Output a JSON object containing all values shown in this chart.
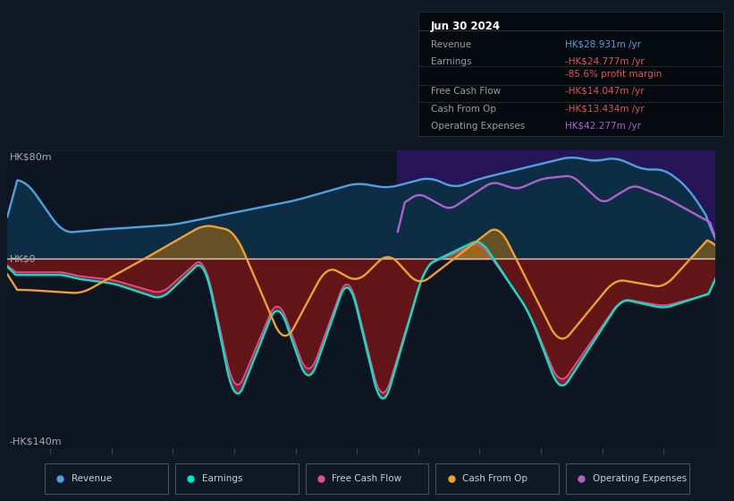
{
  "bg_color": "#0f1923",
  "chart_bg": "#0d1520",
  "ylabel_top": "HK$80m",
  "ylabel_zero": "HK$0",
  "ylabel_bot": "-HK$140m",
  "ylim": [
    -140,
    80
  ],
  "xlim_start": 2013.3,
  "xlim_end": 2024.85,
  "xticks": [
    2014,
    2015,
    2016,
    2017,
    2018,
    2019,
    2020,
    2021,
    2022,
    2023,
    2024
  ],
  "info_box_title": "Jun 30 2024",
  "info_rows": [
    {
      "label": "Revenue",
      "value": "HK$28.931m /yr",
      "vcolor": "#4ca3e0"
    },
    {
      "label": "Earnings",
      "value": "-HK$24.777m /yr",
      "vcolor": "#e05555"
    },
    {
      "label": "",
      "value": "-85.6% profit margin",
      "vcolor": "#e05555"
    },
    {
      "label": "Free Cash Flow",
      "value": "-HK$14.047m /yr",
      "vcolor": "#e05555"
    },
    {
      "label": "Cash From Op",
      "value": "-HK$13.434m /yr",
      "vcolor": "#e05555"
    },
    {
      "label": "Operating Expenses",
      "value": "HK$42.277m /yr",
      "vcolor": "#b060d0"
    }
  ],
  "legend_items": [
    {
      "label": "Revenue",
      "color": "#4ca3e0"
    },
    {
      "label": "Earnings",
      "color": "#00e5cc"
    },
    {
      "label": "Free Cash Flow",
      "color": "#e0508a"
    },
    {
      "label": "Cash From Op",
      "color": "#f0a030"
    },
    {
      "label": "Operating Expenses",
      "color": "#b060d0"
    }
  ],
  "revenue_color": "#4ca3e0",
  "earnings_color": "#00e5cc",
  "fcf_color": "#e0508a",
  "cashop_color": "#f0a030",
  "opex_color": "#b060d0",
  "purple_shade_start": 2019.65,
  "purple_shade_end": 2024.85,
  "zero_line_color": "#cccccc",
  "separator_color": "#2a3a4a",
  "grid_line_color": "#1a2535"
}
